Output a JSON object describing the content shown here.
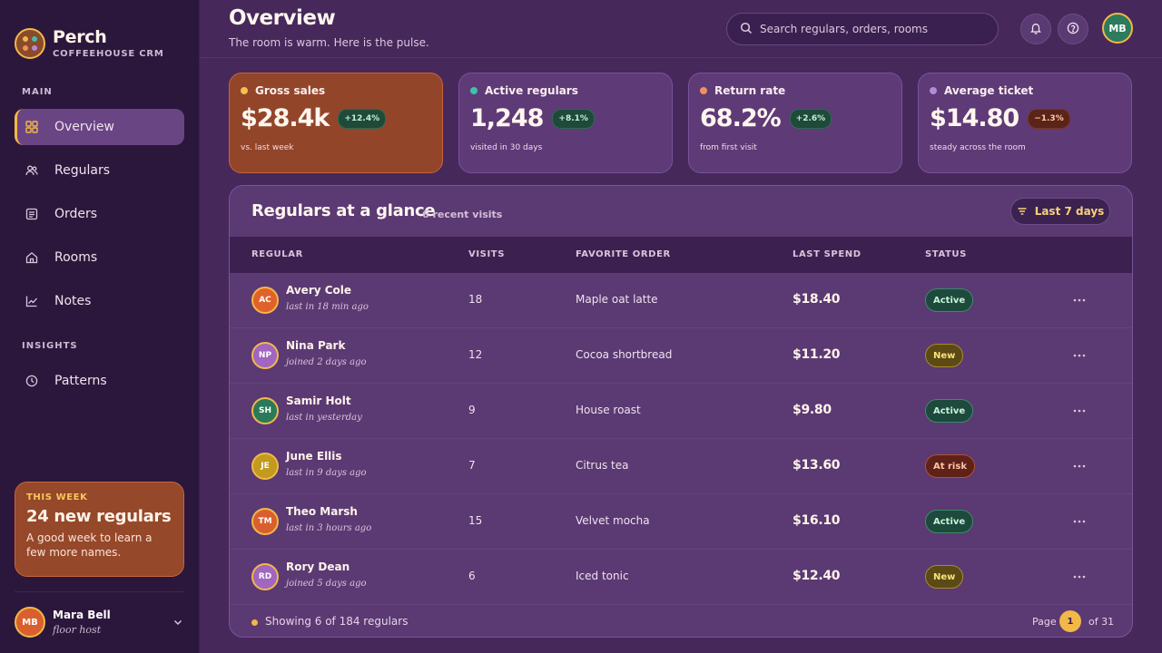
{
  "sidebar": {
    "brand": {
      "name": "Perch",
      "subtitle": "COFFEEHOUSE CRM"
    },
    "sections": {
      "main": "MAIN",
      "insights": "INSIGHTS"
    },
    "nav": [
      {
        "label": "Overview",
        "icon": "grid-icon",
        "active": true
      },
      {
        "label": "Regulars",
        "icon": "users-icon"
      },
      {
        "label": "Orders",
        "icon": "receipt-icon"
      },
      {
        "label": "Rooms",
        "icon": "home-icon"
      },
      {
        "label": "Notes",
        "icon": "chart-line-icon"
      },
      {
        "label": "Patterns",
        "icon": "clock-icon"
      }
    ],
    "promo": {
      "kicker": "THIS WEEK",
      "title": "24 new regulars",
      "body": "A good week to learn a few more names."
    },
    "user": {
      "initials": "MB",
      "name": "Mara Bell",
      "role": "floor host"
    }
  },
  "header": {
    "title": "Overview",
    "subtitle": "The room is warm. Here is the pulse.",
    "search_placeholder": "Search regulars, orders, rooms",
    "avatar_initials": "MB"
  },
  "kpis": [
    {
      "label": "Gross sales",
      "value": "$28.4k",
      "delta": "+12.4%",
      "trend": "up",
      "foot": "vs. last week",
      "dot_color": "#f2c14a"
    },
    {
      "label": "Active regulars",
      "value": "1,248",
      "delta": "+8.1%",
      "trend": "up",
      "foot": "visited in 30 days",
      "dot_color": "#3cc2a8"
    },
    {
      "label": "Return rate",
      "value": "68.2%",
      "delta": "+2.6%",
      "trend": "up",
      "foot": "from first visit",
      "dot_color": "#f0905c"
    },
    {
      "label": "Average ticket",
      "value": "$14.80",
      "delta": "−1.3%",
      "trend": "down",
      "foot": "steady across the room",
      "dot_color": "#b68ad8"
    }
  ],
  "table": {
    "title": "Regulars at a glance",
    "count_label": "6 recent visits",
    "filter_label": "Last 7 days",
    "columns": {
      "regular": "REGULAR",
      "visits": "VISITS",
      "favorite": "FAVORITE ORDER",
      "spend": "LAST SPEND",
      "status": "STATUS"
    },
    "rows": [
      {
        "initials": "AC",
        "name": "Avery Cole",
        "seen": "last in 18 min ago",
        "visits": "18",
        "favorite": "Maple oat latte",
        "spend": "$18.40",
        "status": "Active",
        "avatar_color": "#e0622a"
      },
      {
        "initials": "NP",
        "name": "Nina Park",
        "seen": "joined 2 days ago",
        "visits": "12",
        "favorite": "Cocoa shortbread",
        "spend": "$11.20",
        "status": "New",
        "avatar_color": "#a066c0"
      },
      {
        "initials": "SH",
        "name": "Samir Holt",
        "seen": "last in yesterday",
        "visits": "9",
        "favorite": "House roast",
        "spend": "$9.80",
        "status": "Active",
        "avatar_color": "#2a7a5a"
      },
      {
        "initials": "JE",
        "name": "June Ellis",
        "seen": "last in 9 days ago",
        "visits": "7",
        "favorite": "Citrus tea",
        "spend": "$13.60",
        "status": "At risk",
        "avatar_color": "#c29a1e"
      },
      {
        "initials": "TM",
        "name": "Theo Marsh",
        "seen": "last in 3 hours ago",
        "visits": "15",
        "favorite": "Velvet mocha",
        "spend": "$16.10",
        "status": "Active",
        "avatar_color": "#d9602e"
      },
      {
        "initials": "RD",
        "name": "Rory Dean",
        "seen": "joined 5 days ago",
        "visits": "6",
        "favorite": "Iced tonic",
        "spend": "$12.40",
        "status": "New",
        "avatar_color": "#a066c0"
      }
    ],
    "footer": {
      "showing": "Showing 6 of 184 regulars",
      "page_label": "Page",
      "page": "1",
      "page_of": "of 31"
    }
  }
}
